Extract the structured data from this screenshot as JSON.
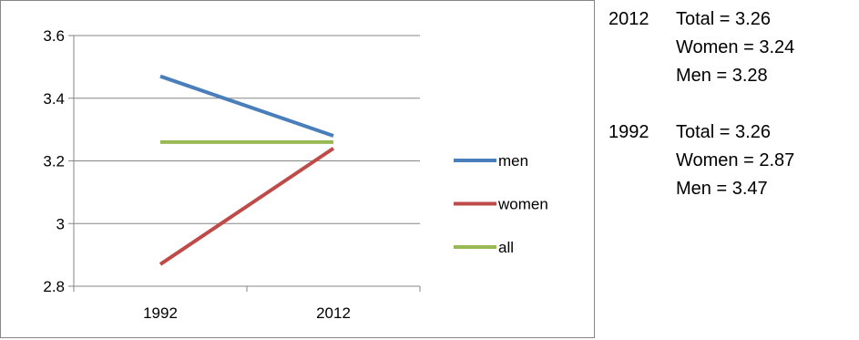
{
  "chart_data": {
    "type": "line",
    "categories": [
      "1992",
      "2012"
    ],
    "series": [
      {
        "name": "men",
        "values": [
          3.47,
          3.28
        ],
        "color": "#4a7ebb"
      },
      {
        "name": "women",
        "values": [
          2.87,
          3.24
        ],
        "color": "#be4b48"
      },
      {
        "name": "all",
        "values": [
          3.26,
          3.26
        ],
        "color": "#98b954"
      }
    ],
    "yticks": [
      "2.8",
      "3",
      "3.2",
      "3.4",
      "3.6"
    ],
    "ylim": [
      2.8,
      3.6
    ],
    "title": "",
    "xlabel": "",
    "ylabel": "",
    "grid": true,
    "legend_position": "right"
  },
  "summary": [
    {
      "year": "2012",
      "lines": [
        "Total = 3.26",
        "Women = 3.24",
        "Men = 3.28"
      ]
    },
    {
      "year": "1992",
      "lines": [
        "Total = 3.26",
        "Women = 2.87",
        "Men = 3.47"
      ]
    }
  ]
}
